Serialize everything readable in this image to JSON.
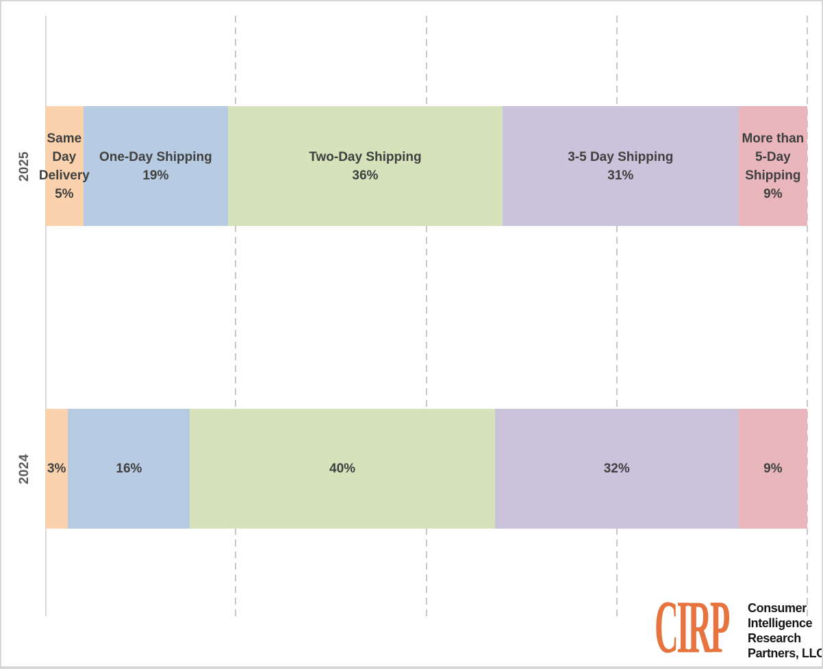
{
  "chart_data": {
    "type": "bar",
    "stacked": true,
    "orientation": "horizontal",
    "title": "",
    "xlabel": "",
    "ylabel": "",
    "categories": [
      "2025",
      "2024"
    ],
    "series": [
      {
        "name": "Same Day Delivery",
        "color": "#FAD2AD",
        "values": [
          5,
          3
        ]
      },
      {
        "name": "One-Day Shipping",
        "color": "#B7CCE3",
        "values": [
          19,
          16
        ]
      },
      {
        "name": "Two-Day Shipping",
        "color": "#D6E3BA",
        "values": [
          36,
          40
        ]
      },
      {
        "name": "3-5 Day Shipping",
        "color": "#CBC2DC",
        "values": [
          31,
          32
        ]
      },
      {
        "name": "More than 5-Day Shipping",
        "color": "#E9B7BB",
        "values": [
          9,
          9
        ]
      }
    ],
    "xlim": [
      0,
      100
    ],
    "grid": {
      "vertical_dashed_at": [
        25,
        50,
        75,
        100
      ],
      "color": "#C7C7C7"
    },
    "legend": "none",
    "bar_labels": [
      [
        [
          "Same",
          "Day",
          "Delivery",
          "5%"
        ],
        [
          "One-Day Shipping",
          "19%"
        ],
        [
          "Two-Day Shipping",
          "36%"
        ],
        [
          "3-5 Day Shipping",
          "31%"
        ],
        [
          "More than",
          "5-Day",
          "Shipping",
          "9%"
        ]
      ],
      [
        [
          "3%"
        ],
        [
          "16%"
        ],
        [
          "40%"
        ],
        [
          "32%"
        ],
        [
          "9%"
        ]
      ]
    ]
  },
  "logo": {
    "brand": "CIRP",
    "brand_color": "#E7743E",
    "lines": [
      "Consumer",
      "Intelligence",
      "Research",
      "Partners, LLC"
    ]
  },
  "colors": {
    "label_text": "#3F3F3F",
    "axis_label": "#595959",
    "axis_line": "#D9D9D9",
    "grid_line": "#C7C7C7",
    "frame_border": "#D7D7D7",
    "background": "#FFFFFF"
  }
}
